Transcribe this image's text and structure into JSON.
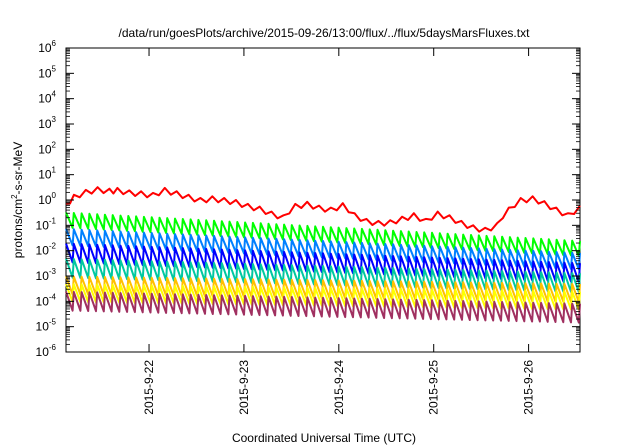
{
  "chart_data": {
    "type": "line",
    "title": "/data/run/goesPlots/archive/2015-09-26/13:00/flux/../flux/5daysMarsFluxes.txt",
    "xlabel": "Coordinated Universal Time (UTC)",
    "ylabel": "protons/cm2-s-sr-MeV",
    "ylabel_parts": {
      "base": "protons/cm",
      "sup": "2",
      "rest": "-s-sr-MeV"
    },
    "y_scale": "log",
    "ylim": [
      1e-06,
      1000000.0
    ],
    "y_ticks": [
      {
        "value": 1e-06,
        "base": "10",
        "exp": "-6"
      },
      {
        "value": 1e-05,
        "base": "10",
        "exp": "-5"
      },
      {
        "value": 0.0001,
        "base": "10",
        "exp": "-4"
      },
      {
        "value": 0.001,
        "base": "10",
        "exp": "-3"
      },
      {
        "value": 0.01,
        "base": "10",
        "exp": "-2"
      },
      {
        "value": 0.1,
        "base": "10",
        "exp": "-1"
      },
      {
        "value": 1,
        "base": "10",
        "exp": "0"
      },
      {
        "value": 10.0,
        "base": "10",
        "exp": "1"
      },
      {
        "value": 100.0,
        "base": "10",
        "exp": "2"
      },
      {
        "value": 1000.0,
        "base": "10",
        "exp": "3"
      },
      {
        "value": 10000.0,
        "base": "10",
        "exp": "4"
      },
      {
        "value": 100000.0,
        "base": "10",
        "exp": "5"
      },
      {
        "value": 1000000.0,
        "base": "10",
        "exp": "6"
      }
    ],
    "xlim": [
      "2015-09-21T03:00",
      "2015-09-26T13:00"
    ],
    "x_ticks": [
      {
        "value": "2015-09-22T00:00",
        "label": "2015-9-22"
      },
      {
        "value": "2015-09-23T00:00",
        "label": "2015-9-23"
      },
      {
        "value": "2015-09-24T00:00",
        "label": "2015-9-24"
      },
      {
        "value": "2015-09-25T00:00",
        "label": "2015-9-25"
      },
      {
        "value": "2015-09-26T00:00",
        "label": "2015-9-26"
      }
    ],
    "grid": false,
    "legend": "none",
    "series": [
      {
        "color": "#ff0000",
        "x": [
          "2015-09-21T03:00",
          "2015-09-21T05:00",
          "2015-09-21T08:00",
          "2015-09-21T11:00",
          "2015-09-21T14:00",
          "2015-09-21T16:00",
          "2015-09-21T19:00",
          "2015-09-21T22:00",
          "2015-09-22T01:00",
          "2015-09-22T04:00",
          "2015-09-22T07:00",
          "2015-09-22T10:00",
          "2015-09-22T13:00",
          "2015-09-22T16:00",
          "2015-09-22T19:00",
          "2015-09-22T22:00",
          "2015-09-23T01:00",
          "2015-09-23T04:00",
          "2015-09-23T07:00",
          "2015-09-23T10:00",
          "2015-09-23T13:00",
          "2015-09-23T16:00",
          "2015-09-23T19:00",
          "2015-09-23T22:00",
          "2015-09-24T01:00",
          "2015-09-24T04:00",
          "2015-09-24T07:00",
          "2015-09-24T10:00",
          "2015-09-24T13:00",
          "2015-09-24T16:00",
          "2015-09-24T19:00",
          "2015-09-24T22:00",
          "2015-09-25T01:00",
          "2015-09-25T04:00",
          "2015-09-25T07:00",
          "2015-09-25T10:00",
          "2015-09-25T13:00",
          "2015-09-25T16:00",
          "2015-09-25T19:00",
          "2015-09-25T22:00",
          "2015-09-26T01:00",
          "2015-09-26T04:00",
          "2015-09-26T07:00",
          "2015-09-26T10:00",
          "2015-09-26T13:00"
        ],
        "values": [
          0.7,
          1.6,
          2.5,
          3.2,
          2.8,
          3.0,
          2.4,
          2.2,
          1.9,
          3.0,
          2.2,
          1.6,
          1.2,
          1.4,
          1.2,
          1.0,
          0.7,
          0.55,
          0.35,
          0.25,
          0.7,
          0.85,
          0.6,
          0.5,
          0.75,
          0.3,
          0.18,
          0.15,
          0.16,
          0.22,
          0.3,
          0.18,
          0.35,
          0.25,
          0.15,
          0.1,
          0.08,
          0.12,
          0.5,
          1.2,
          1.4,
          0.9,
          0.5,
          0.3,
          0.6
        ],
        "sawtooth": 0.6
      },
      {
        "color": "#00ff00",
        "start": 0.2,
        "end": 0.015,
        "sawtooth": 2.5
      },
      {
        "color": "#0080ff",
        "start": 0.045,
        "end": 0.005,
        "sawtooth": 2.8
      },
      {
        "color": "#0000ff",
        "start": 0.012,
        "end": 0.002,
        "sawtooth": 3.5
      },
      {
        "color": "#00c8a0",
        "start": 0.003,
        "end": 0.0008,
        "sawtooth": 3.5
      },
      {
        "color": "#ffc000",
        "start": 0.0006,
        "end": 0.0003,
        "sawtooth": 3.2
      },
      {
        "color": "#ffff00",
        "start": 0.0003,
        "end": 0.00015,
        "sawtooth": 3.2
      },
      {
        "color": "#a03060",
        "start": 0.00015,
        "end": 5e-05,
        "sawtooth": 3.5
      }
    ]
  }
}
